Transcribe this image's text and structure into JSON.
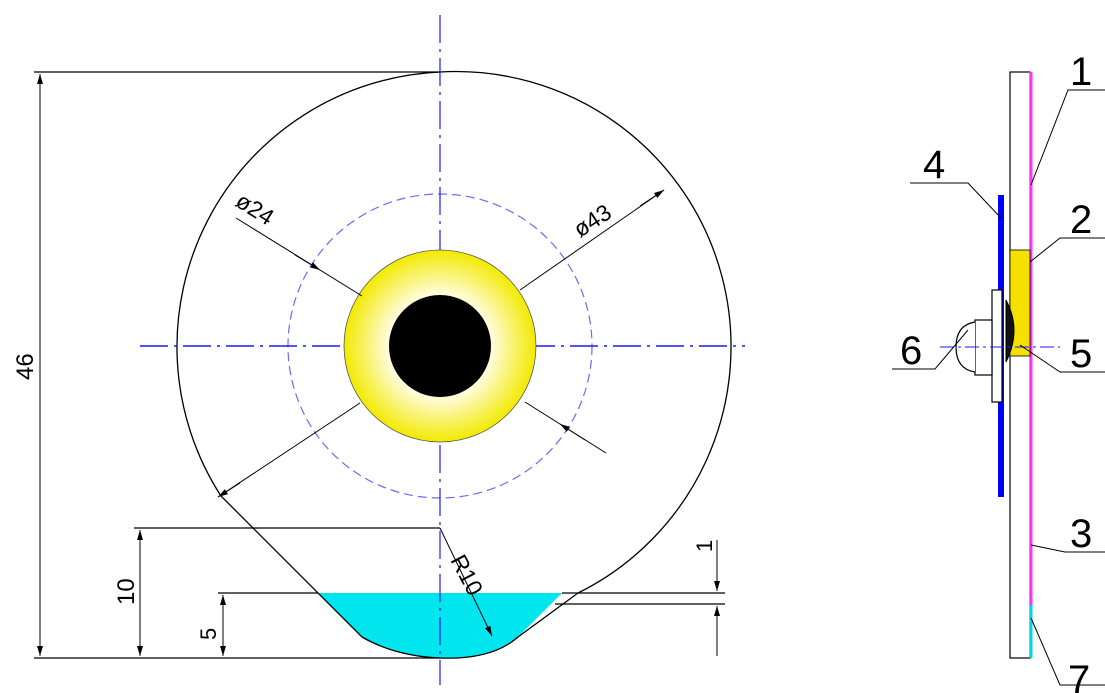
{
  "colors": {
    "outline": "#000000",
    "centerline": "#1a1aff",
    "dashed_circle": "#6a6aff",
    "yellow_ring": "#f5ef00",
    "yellow_ring_inner": "#fffbd0",
    "hole": "#000000",
    "water": "#00e5ee",
    "blue_part": "#0000ff",
    "magenta_part": "#ff33ff",
    "side_yellow": "#f5e000"
  },
  "front_view": {
    "dimensions": {
      "height_total": "46",
      "inner_diameter": "ø24",
      "outer_diameter": "ø43",
      "radius": "R10",
      "level_10": "10",
      "level_5": "5",
      "level_1": "1"
    }
  },
  "side_view": {
    "callouts": [
      "1",
      "2",
      "3",
      "4",
      "5",
      "6",
      "7"
    ]
  }
}
